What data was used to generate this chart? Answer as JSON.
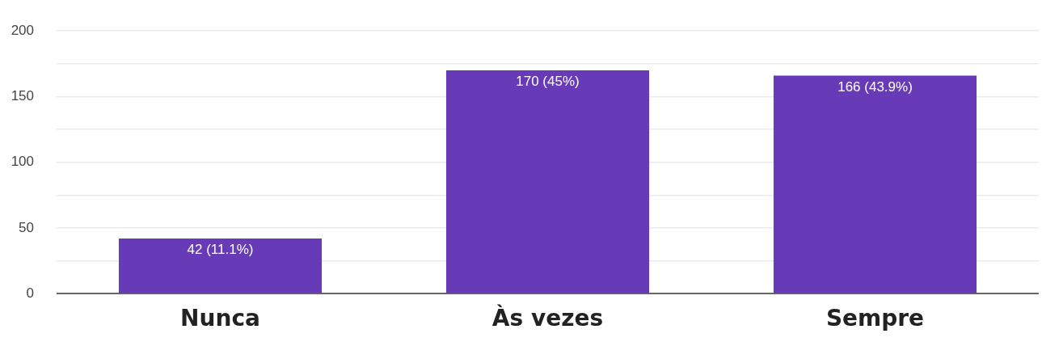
{
  "chart_data": {
    "type": "bar",
    "categories": [
      "Nunca",
      "Às vezes",
      "Sempre"
    ],
    "values": [
      42,
      170,
      166
    ],
    "color": "#673ab7",
    "value_labels": [
      "42 (11.1%)",
      "170 (45%)",
      "166 (43.9%)"
    ],
    "ylim": [
      0,
      200
    ],
    "yticks": [
      0,
      {
        "value": 25,
        "label": null
      },
      50,
      {
        "value": 75,
        "label": null
      },
      100,
      {
        "value": 125,
        "label": null
      },
      150,
      {
        "value": 175,
        "label": null
      },
      200
    ],
    "grid": "y",
    "legend": false
  }
}
